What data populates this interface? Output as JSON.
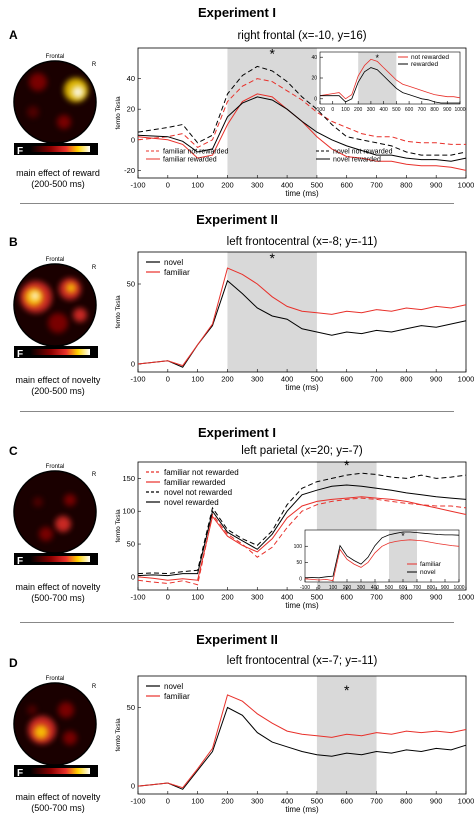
{
  "panels": [
    {
      "experiment": "Experiment I",
      "letter": "A",
      "plot_title": "right frontal (x=-10, y=16)",
      "topomap": {
        "head_label": "Frontal",
        "side_label": "R",
        "f_label": "F",
        "caption_line1": "main effect of reward",
        "caption_line2": "(200-500 ms)",
        "blobs": "reward"
      },
      "chart_data": {
        "type": "line",
        "title": "right frontal (x=-10, y=16)",
        "xlabel": "time (ms)",
        "ylabel": "femto Tesla",
        "xlim": [
          -100,
          1000
        ],
        "ylim": [
          -25,
          60
        ],
        "xticks": [
          -100,
          0,
          100,
          200,
          300,
          400,
          500,
          600,
          700,
          800,
          900,
          1000
        ],
        "yticks": [
          -20,
          0,
          20,
          40
        ],
        "shaded_window": [
          200,
          500
        ],
        "annotation": "*",
        "annotation_x": 350,
        "annotation_y": 53,
        "legend": {
          "placement": "bottom",
          "labels": [
            "familiar not rewarded",
            "familiar rewarded",
            "novel not rewarded",
            "novel rewarded"
          ]
        },
        "x": [
          -100,
          0,
          50,
          100,
          150,
          200,
          250,
          300,
          350,
          400,
          450,
          500,
          550,
          600,
          650,
          700,
          750,
          800,
          850,
          900,
          950,
          1000
        ],
        "series": [
          {
            "name": "familiar not rewarded",
            "color": "#e8302a",
            "dash": "5,3",
            "values": [
              0,
              2,
              4,
              -5,
              0,
              25,
              35,
              40,
              38,
              32,
              26,
              18,
              12,
              8,
              4,
              2,
              2,
              -1,
              -2,
              -2,
              -3,
              -3
            ]
          },
          {
            "name": "familiar rewarded",
            "color": "#e8302a",
            "dash": "",
            "values": [
              2,
              0,
              -3,
              -12,
              -10,
              10,
              25,
              30,
              28,
              20,
              12,
              2,
              -6,
              -11,
              -12,
              -14,
              -14,
              -16,
              -17,
              -17,
              -18,
              -20
            ]
          },
          {
            "name": "novel not rewarded",
            "color": "#000000",
            "dash": "5,3",
            "values": [
              5,
              8,
              10,
              -2,
              3,
              30,
              42,
              48,
              45,
              38,
              28,
              20,
              10,
              2,
              0,
              -2,
              -4,
              -8,
              -10,
              -10,
              -10,
              -8
            ]
          },
          {
            "name": "novel rewarded",
            "color": "#000000",
            "dash": "",
            "values": [
              3,
              2,
              -1,
              -8,
              -6,
              15,
              24,
              28,
              26,
              20,
              12,
              5,
              0,
              -4,
              -7,
              -10,
              -10,
              -12,
              -13,
              -13,
              -14,
              -12
            ]
          }
        ],
        "inset": {
          "xlim": [
            -100,
            1000
          ],
          "ylim": [
            -5,
            45
          ],
          "xticks": [
            -100,
            0,
            100,
            200,
            300,
            400,
            500,
            600,
            700,
            800,
            900,
            1000
          ],
          "yticks": [
            0,
            20,
            40
          ],
          "shaded_window": [
            200,
            500
          ],
          "annotation": "*",
          "x": [
            -100,
            0,
            50,
            100,
            150,
            200,
            250,
            300,
            350,
            400,
            450,
            500,
            550,
            600,
            650,
            700,
            750,
            800,
            850,
            900,
            950,
            1000
          ],
          "series": [
            {
              "name": "not rewarded",
              "color": "#e8302a",
              "dash": "",
              "values": [
                3,
                5,
                6,
                0,
                4,
                22,
                32,
                38,
                36,
                30,
                24,
                18,
                14,
                12,
                10,
                8,
                6,
                4,
                3,
                2,
                2,
                1
              ]
            },
            {
              "name": "rewarded",
              "color": "#000000",
              "dash": "",
              "values": [
                3,
                3,
                3,
                -3,
                0,
                16,
                26,
                30,
                28,
                22,
                16,
                10,
                6,
                4,
                2,
                0,
                -1,
                -3,
                -4,
                -4,
                -4,
                -4
              ]
            }
          ]
        }
      }
    },
    {
      "experiment": "Experiment II",
      "letter": "B",
      "plot_title": "left frontocentral (x=-8; y=-11)",
      "topomap": {
        "head_label": "Frontal",
        "side_label": "R",
        "f_label": "F",
        "caption_line1": "main effect of novelty",
        "caption_line2": "(200-500 ms)",
        "blobs": "novelty_early"
      },
      "chart_data": {
        "type": "line",
        "title": "left frontocentral (x=-8; y=-11)",
        "xlabel": "time (ms)",
        "ylabel": "femto Tesla",
        "xlim": [
          -100,
          1000
        ],
        "ylim": [
          -5,
          70
        ],
        "xticks": [
          -100,
          0,
          100,
          200,
          300,
          400,
          500,
          600,
          700,
          800,
          900,
          1000
        ],
        "yticks": [
          0,
          50
        ],
        "shaded_window": [
          200,
          500
        ],
        "annotation": "*",
        "annotation_x": 350,
        "annotation_y": 63,
        "legend": {
          "placement": "top-left",
          "labels": [
            "novel",
            "familiar"
          ]
        },
        "x": [
          -100,
          -50,
          0,
          50,
          100,
          150,
          200,
          250,
          300,
          350,
          400,
          450,
          500,
          550,
          600,
          650,
          700,
          750,
          800,
          850,
          900,
          950,
          1000
        ],
        "series": [
          {
            "name": "novel",
            "color": "#000000",
            "dash": "",
            "values": [
              0,
              1,
              2,
              -2,
              12,
              24,
              52,
              44,
              35,
              30,
              28,
              22,
              20,
              18,
              20,
              19,
              21,
              20,
              22,
              24,
              23,
              25,
              27
            ]
          },
          {
            "name": "familiar",
            "color": "#e8302a",
            "dash": "",
            "values": [
              0,
              1,
              2,
              -1,
              12,
              25,
              60,
              56,
              50,
              42,
              36,
              33,
              32,
              31,
              33,
              32,
              34,
              33,
              35,
              34,
              36,
              35,
              37
            ]
          }
        ]
      }
    },
    {
      "experiment": "Experiment I",
      "letter": "C",
      "plot_title": "left parietal (x=20; y=-7)",
      "topomap": {
        "head_label": "Frontal",
        "side_label": "R",
        "f_label": "F",
        "caption_line1": "main effect of novelty",
        "caption_line2": "(500-700 ms)",
        "blobs": "parietal"
      },
      "chart_data": {
        "type": "line",
        "title": "left parietal (x=20; y=-7)",
        "xlabel": "time (ms)",
        "ylabel": "femto Tesla",
        "xlim": [
          -100,
          1000
        ],
        "ylim": [
          -20,
          175
        ],
        "xticks": [
          -100,
          0,
          100,
          200,
          300,
          400,
          500,
          600,
          700,
          800,
          900,
          1000
        ],
        "yticks": [
          0,
          50,
          100,
          150
        ],
        "shaded_window": [
          500,
          700
        ],
        "annotation": "*",
        "annotation_x": 600,
        "annotation_y": 163,
        "legend": {
          "placement": "top-left",
          "labels": [
            "familiar not rewarded",
            "familiar rewarded",
            "novel not rewarded",
            "novel rewarded"
          ]
        },
        "x": [
          -100,
          -50,
          0,
          50,
          100,
          150,
          200,
          250,
          300,
          350,
          400,
          450,
          500,
          550,
          600,
          650,
          700,
          750,
          800,
          850,
          900,
          950,
          1000
        ],
        "series": [
          {
            "name": "familiar not rewarded",
            "color": "#e8302a",
            "dash": "5,3",
            "values": [
              -5,
              -8,
              -10,
              -6,
              -12,
              95,
              65,
              50,
              30,
              45,
              75,
              100,
              110,
              115,
              118,
              120,
              118,
              115,
              112,
              110,
              108,
              108,
              105
            ]
          },
          {
            "name": "familiar rewarded",
            "color": "#e8302a",
            "dash": "",
            "values": [
              0,
              -2,
              -5,
              -3,
              -5,
              92,
              62,
              48,
              38,
              58,
              90,
              108,
              115,
              118,
              120,
              122,
              120,
              118,
              115,
              110,
              105,
              100,
              95
            ]
          },
          {
            "name": "novel not rewarded",
            "color": "#000000",
            "dash": "5,3",
            "values": [
              5,
              6,
              5,
              8,
              10,
              105,
              72,
              58,
              48,
              70,
              110,
              135,
              145,
              150,
              155,
              158,
              156,
              152,
              150,
              155,
              150,
              152,
              155
            ]
          },
          {
            "name": "novel rewarded",
            "color": "#000000",
            "dash": "",
            "values": [
              2,
              3,
              2,
              5,
              5,
              100,
              68,
              55,
              42,
              65,
              100,
              125,
              132,
              138,
              140,
              138,
              135,
              132,
              128,
              125,
              122,
              120,
              118
            ]
          }
        ],
        "inset": {
          "xlim": [
            -100,
            1000
          ],
          "ylim": [
            -10,
            150
          ],
          "xticks": [
            -100,
            0,
            100,
            200,
            300,
            400,
            500,
            600,
            700,
            800,
            900,
            1000
          ],
          "yticks": [
            0,
            50,
            100
          ],
          "shaded_window": [
            500,
            700
          ],
          "annotation": "*",
          "x": [
            -100,
            -50,
            0,
            50,
            100,
            150,
            200,
            250,
            300,
            350,
            400,
            450,
            500,
            550,
            600,
            650,
            700,
            750,
            800,
            850,
            900,
            950,
            1000
          ],
          "series": [
            {
              "name": "familiar",
              "color": "#e8302a",
              "dash": "",
              "values": [
                0,
                -2,
                -4,
                -2,
                -6,
                90,
                60,
                45,
                35,
                50,
                80,
                100,
                110,
                115,
                118,
                120,
                118,
                116,
                112,
                108,
                105,
                102,
                100
              ]
            },
            {
              "name": "novel",
              "color": "#000000",
              "dash": "",
              "values": [
                3,
                4,
                3,
                6,
                8,
                102,
                70,
                56,
                45,
                66,
                102,
                126,
                135,
                140,
                144,
                144,
                142,
                140,
                138,
                136,
                135,
                135,
                134
              ]
            }
          ]
        }
      }
    },
    {
      "experiment": "Experiment II",
      "letter": "D",
      "plot_title": "left frontocentral (x=-7; y=-11)",
      "topomap": {
        "head_label": "Frontal",
        "side_label": "R",
        "f_label": "F",
        "caption_line1": "main effect of novelty",
        "caption_line2": "(500-700 ms)",
        "blobs": "novelty_late"
      },
      "chart_data": {
        "type": "line",
        "title": "left frontocentral (x=-7; y=-11)",
        "xlabel": "time (ms)",
        "ylabel": "femto Tesla",
        "xlim": [
          -100,
          1000
        ],
        "ylim": [
          -5,
          70
        ],
        "xticks": [
          -100,
          0,
          100,
          200,
          300,
          400,
          500,
          600,
          700,
          800,
          900,
          1000
        ],
        "yticks": [
          0,
          50
        ],
        "shaded_window": [
          500,
          700
        ],
        "annotation": "*",
        "annotation_x": 600,
        "annotation_y": 58,
        "legend": {
          "placement": "top-left",
          "labels": [
            "novel",
            "familiar"
          ]
        },
        "x": [
          -100,
          -50,
          0,
          50,
          100,
          150,
          200,
          250,
          300,
          350,
          400,
          450,
          500,
          550,
          600,
          650,
          700,
          750,
          800,
          850,
          900,
          950,
          1000
        ],
        "series": [
          {
            "name": "novel",
            "color": "#000000",
            "dash": "",
            "values": [
              0,
              1,
              2,
              -2,
              10,
              22,
              50,
              45,
              34,
              28,
              25,
              22,
              20,
              19,
              21,
              20,
              22,
              21,
              23,
              22,
              24,
              23,
              26
            ]
          },
          {
            "name": "familiar",
            "color": "#e8302a",
            "dash": "",
            "values": [
              0,
              1,
              2,
              -1,
              11,
              24,
              58,
              54,
              46,
              40,
              35,
              33,
              32,
              31,
              33,
              32,
              34,
              33,
              35,
              34,
              35,
              34,
              36
            ]
          }
        ]
      }
    }
  ]
}
